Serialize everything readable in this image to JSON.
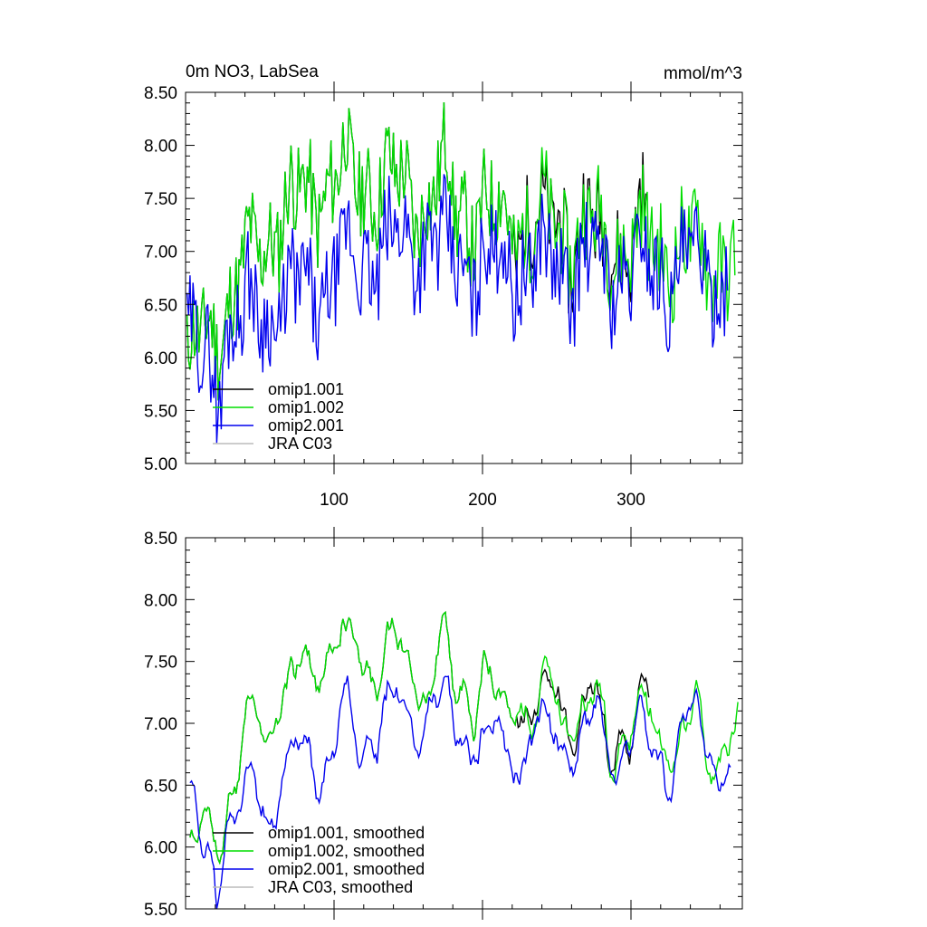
{
  "chart_data": [
    {
      "type": "line",
      "title": "0m NO3, LabSea",
      "units": "mmol/m^3",
      "xlim": [
        0,
        375
      ],
      "ylim": [
        5.0,
        8.5
      ],
      "x_ticks": [
        100,
        200,
        300
      ],
      "y_ticks": [
        "5.00",
        "5.50",
        "6.00",
        "6.50",
        "7.00",
        "7.50",
        "8.00",
        "8.50"
      ],
      "legend": [
        "omip1.001",
        "omip1.002",
        "omip2.001",
        "JRA C03"
      ],
      "legend_position": "bottom-left",
      "series": [
        {
          "name": "omip1.001",
          "color": "#000000",
          "n": 310,
          "start": 1,
          "seed": 11
        },
        {
          "name": "omip1.002",
          "color": "#00dd00",
          "n": 370,
          "start": 1,
          "seed": 11
        },
        {
          "name": "omip2.001",
          "color": "#0000ee",
          "n": 365,
          "start": 1,
          "seed": 29
        },
        {
          "name": "JRA C03",
          "color": "#bbbbbb",
          "n": 0,
          "start": 1,
          "seed": 0
        }
      ]
    },
    {
      "type": "line",
      "title": "",
      "units": "",
      "xlim": [
        0,
        375
      ],
      "ylim": [
        5.5,
        8.5
      ],
      "x_ticks": [],
      "y_ticks": [
        "5.50",
        "6.00",
        "6.50",
        "7.00",
        "7.50",
        "8.00",
        "8.50"
      ],
      "legend": [
        "omip1.001, smoothed",
        "omip1.002, smoothed",
        "omip2.001, smoothed",
        "JRA C03, smoothed"
      ],
      "legend_position": "bottom-left",
      "series": [
        {
          "name": "omip1.001, smoothed",
          "color": "#000000",
          "n": 310,
          "start": 3,
          "seed": 11
        },
        {
          "name": "omip1.002, smoothed",
          "color": "#00dd00",
          "n": 370,
          "start": 3,
          "seed": 11
        },
        {
          "name": "omip2.001, smoothed",
          "color": "#0000ee",
          "n": 365,
          "start": 3,
          "seed": 29
        },
        {
          "name": "JRA C03, smoothed",
          "color": "#bbbbbb",
          "n": 0,
          "start": 3,
          "seed": 0
        }
      ]
    }
  ]
}
